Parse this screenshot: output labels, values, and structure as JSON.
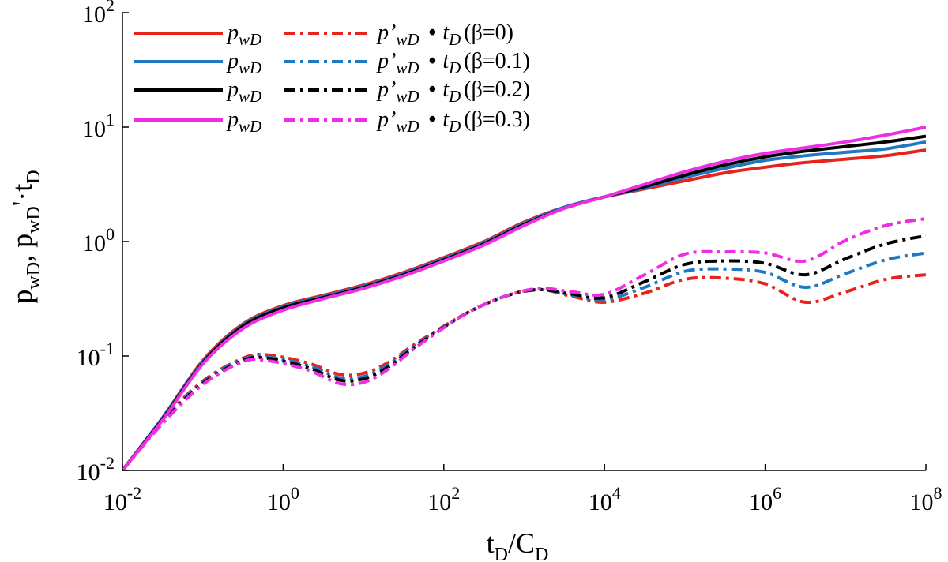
{
  "chart_data": {
    "type": "line",
    "xscale": "log",
    "yscale": "log",
    "xlim": [
      0.01,
      100000000
    ],
    "ylim": [
      0.01,
      100
    ],
    "xlabel": {
      "base": "t",
      "sub": "D",
      "slash": "/C",
      "sub2": "D"
    },
    "ylabel": {
      "p1": "p",
      "s1": "wD",
      "comma": ", p",
      "s2": "wD",
      "tail": "'·t",
      "s3": "D"
    },
    "x_ticks": [
      {
        "exp_value": -2,
        "base": "10",
        "exp": "-2"
      },
      {
        "exp_value": 0,
        "base": "10",
        "exp": "0"
      },
      {
        "exp_value": 2,
        "base": "10",
        "exp": "2"
      },
      {
        "exp_value": 4,
        "base": "10",
        "exp": "4"
      },
      {
        "exp_value": 6,
        "base": "10",
        "exp": "6"
      },
      {
        "exp_value": 8,
        "base": "10",
        "exp": "8"
      }
    ],
    "y_ticks": [
      {
        "exp_value": -2,
        "base": "10",
        "exp": "-2"
      },
      {
        "exp_value": -1,
        "base": "10",
        "exp": "-1"
      },
      {
        "exp_value": 0,
        "base": "10",
        "exp": "0"
      },
      {
        "exp_value": 1,
        "base": "10",
        "exp": "1"
      },
      {
        "exp_value": 2,
        "base": "10",
        "exp": "2"
      }
    ],
    "legend_position": "top-left",
    "legend": [
      {
        "solid": "p",
        "solid_sub": "wD",
        "dash": "p’",
        "dash_sub": "wD",
        "bullet": "•",
        "t": "t",
        "t_sub": "D",
        "beta": "(β=0)",
        "color": "#e8231b"
      },
      {
        "solid": "p",
        "solid_sub": "wD",
        "dash": "p’",
        "dash_sub": "wD",
        "bullet": "•",
        "t": "t",
        "t_sub": "D",
        "beta": "(β=0.1)",
        "color": "#1f78c1"
      },
      {
        "solid": "p",
        "solid_sub": "wD",
        "dash": "p’",
        "dash_sub": "wD",
        "bullet": "•",
        "t": "t",
        "t_sub": "D",
        "beta": "(β=0.2)",
        "color": "#000000"
      },
      {
        "solid": "p",
        "solid_sub": "wD",
        "dash": "p’",
        "dash_sub": "wD",
        "bullet": "•",
        "t": "t",
        "t_sub": "D",
        "beta": "(β=0.3)",
        "color": "#ee2ee5"
      }
    ],
    "series": [
      {
        "name": "pwD (β=0)",
        "color": "#e8231b",
        "style": "solid",
        "points": [
          [
            -2,
            -2
          ],
          [
            -1.5,
            -1.54
          ],
          [
            -1,
            -1.04
          ],
          [
            -0.5,
            -0.72
          ],
          [
            0,
            -0.56
          ],
          [
            0.5,
            -0.47
          ],
          [
            1,
            -0.38
          ],
          [
            1.5,
            -0.27
          ],
          [
            2,
            -0.14
          ],
          [
            2.5,
            0
          ],
          [
            3,
            0.17
          ],
          [
            3.5,
            0.3
          ],
          [
            4,
            0.39
          ],
          [
            4.5,
            0.46
          ],
          [
            5,
            0.53
          ],
          [
            5.5,
            0.6
          ],
          [
            6,
            0.65
          ],
          [
            6.5,
            0.69
          ],
          [
            7,
            0.72
          ],
          [
            7.5,
            0.75
          ],
          [
            8,
            0.8
          ]
        ]
      },
      {
        "name": "p’wD·tD (β=0)",
        "color": "#e8231b",
        "style": "dashdot",
        "points": [
          [
            -2,
            -2
          ],
          [
            -1.5,
            -1.56
          ],
          [
            -1,
            -1.22
          ],
          [
            -0.5,
            -1.02
          ],
          [
            -0.2,
            -0.99
          ],
          [
            0.3,
            -1.06
          ],
          [
            0.7,
            -1.16
          ],
          [
            1,
            -1.15
          ],
          [
            1.3,
            -1.06
          ],
          [
            1.7,
            -0.87
          ],
          [
            2.3,
            -0.62
          ],
          [
            2.8,
            -0.47
          ],
          [
            3.2,
            -0.42
          ],
          [
            3.6,
            -0.48
          ],
          [
            4,
            -0.53
          ],
          [
            4.5,
            -0.45
          ],
          [
            5,
            -0.33
          ],
          [
            5.5,
            -0.32
          ],
          [
            6,
            -0.37
          ],
          [
            6.5,
            -0.53
          ],
          [
            7,
            -0.44
          ],
          [
            7.5,
            -0.33
          ],
          [
            8,
            -0.29
          ]
        ]
      },
      {
        "name": "pwD (β=0.1)",
        "color": "#1f78c1",
        "style": "solid",
        "points": [
          [
            -2,
            -2
          ],
          [
            -1.5,
            -1.54
          ],
          [
            -1,
            -1.05
          ],
          [
            -0.5,
            -0.73
          ],
          [
            0,
            -0.57
          ],
          [
            0.5,
            -0.48
          ],
          [
            1,
            -0.39
          ],
          [
            1.5,
            -0.28
          ],
          [
            2,
            -0.15
          ],
          [
            2.5,
            -0.01
          ],
          [
            3,
            0.16
          ],
          [
            3.5,
            0.3
          ],
          [
            4,
            0.39
          ],
          [
            4.5,
            0.47
          ],
          [
            5,
            0.56
          ],
          [
            5.5,
            0.64
          ],
          [
            6,
            0.71
          ],
          [
            6.5,
            0.75
          ],
          [
            7,
            0.78
          ],
          [
            7.5,
            0.81
          ],
          [
            8,
            0.87
          ]
        ]
      },
      {
        "name": "p’wD·tD (β=0.1)",
        "color": "#1f78c1",
        "style": "dashdot",
        "points": [
          [
            -2,
            -2
          ],
          [
            -1.5,
            -1.57
          ],
          [
            -1,
            -1.23
          ],
          [
            -0.5,
            -1.03
          ],
          [
            -0.2,
            -1.01
          ],
          [
            0.3,
            -1.08
          ],
          [
            0.7,
            -1.19
          ],
          [
            1,
            -1.18
          ],
          [
            1.3,
            -1.08
          ],
          [
            1.7,
            -0.88
          ],
          [
            2.3,
            -0.62
          ],
          [
            2.8,
            -0.47
          ],
          [
            3.2,
            -0.42
          ],
          [
            3.6,
            -0.47
          ],
          [
            4,
            -0.51
          ],
          [
            4.5,
            -0.4
          ],
          [
            5,
            -0.26
          ],
          [
            5.5,
            -0.24
          ],
          [
            6,
            -0.27
          ],
          [
            6.5,
            -0.4
          ],
          [
            7,
            -0.28
          ],
          [
            7.5,
            -0.16
          ],
          [
            8,
            -0.1
          ]
        ]
      },
      {
        "name": "pwD (β=0.2)",
        "color": "#000000",
        "style": "solid",
        "points": [
          [
            -2,
            -2
          ],
          [
            -1.5,
            -1.55
          ],
          [
            -1,
            -1.06
          ],
          [
            -0.5,
            -0.74
          ],
          [
            0,
            -0.58
          ],
          [
            0.5,
            -0.49
          ],
          [
            1,
            -0.4
          ],
          [
            1.5,
            -0.29
          ],
          [
            2,
            -0.16
          ],
          [
            2.5,
            -0.02
          ],
          [
            3,
            0.15
          ],
          [
            3.5,
            0.29
          ],
          [
            4,
            0.39
          ],
          [
            4.5,
            0.48
          ],
          [
            5,
            0.58
          ],
          [
            5.5,
            0.67
          ],
          [
            6,
            0.74
          ],
          [
            6.5,
            0.79
          ],
          [
            7,
            0.83
          ],
          [
            7.5,
            0.87
          ],
          [
            8,
            0.92
          ]
        ]
      },
      {
        "name": "p’wD·tD (β=0.2)",
        "color": "#000000",
        "style": "dashdot",
        "points": [
          [
            -2,
            -2
          ],
          [
            -1.5,
            -1.58
          ],
          [
            -1,
            -1.24
          ],
          [
            -0.5,
            -1.04
          ],
          [
            -0.2,
            -1.02
          ],
          [
            0.3,
            -1.1
          ],
          [
            0.7,
            -1.21
          ],
          [
            1,
            -1.2
          ],
          [
            1.3,
            -1.1
          ],
          [
            1.7,
            -0.89
          ],
          [
            2.3,
            -0.62
          ],
          [
            2.8,
            -0.47
          ],
          [
            3.2,
            -0.42
          ],
          [
            3.6,
            -0.46
          ],
          [
            4,
            -0.49
          ],
          [
            4.5,
            -0.35
          ],
          [
            5,
            -0.2
          ],
          [
            5.5,
            -0.17
          ],
          [
            6,
            -0.19
          ],
          [
            6.5,
            -0.29
          ],
          [
            7,
            -0.15
          ],
          [
            7.5,
            -0.02
          ],
          [
            8,
            0.05
          ]
        ]
      },
      {
        "name": "pwD (β=0.3)",
        "color": "#ee2ee5",
        "style": "solid",
        "points": [
          [
            -2,
            -2
          ],
          [
            -1.5,
            -1.56
          ],
          [
            -1,
            -1.07
          ],
          [
            -0.5,
            -0.76
          ],
          [
            0,
            -0.6
          ],
          [
            0.5,
            -0.5
          ],
          [
            1,
            -0.41
          ],
          [
            1.5,
            -0.3
          ],
          [
            2,
            -0.17
          ],
          [
            2.5,
            -0.03
          ],
          [
            3,
            0.14
          ],
          [
            3.5,
            0.29
          ],
          [
            4,
            0.39
          ],
          [
            4.5,
            0.5
          ],
          [
            5,
            0.61
          ],
          [
            5.5,
            0.7
          ],
          [
            6,
            0.77
          ],
          [
            6.5,
            0.82
          ],
          [
            7,
            0.87
          ],
          [
            7.5,
            0.93
          ],
          [
            8,
            1.0
          ]
        ]
      },
      {
        "name": "p’wD·tD (β=0.3)",
        "color": "#ee2ee5",
        "style": "dashdot",
        "points": [
          [
            -2,
            -2
          ],
          [
            -1.5,
            -1.59
          ],
          [
            -1,
            -1.25
          ],
          [
            -0.5,
            -1.05
          ],
          [
            -0.2,
            -1.04
          ],
          [
            0.3,
            -1.12
          ],
          [
            0.7,
            -1.24
          ],
          [
            1,
            -1.23
          ],
          [
            1.3,
            -1.12
          ],
          [
            1.7,
            -0.9
          ],
          [
            2.3,
            -0.62
          ],
          [
            2.8,
            -0.47
          ],
          [
            3.2,
            -0.41
          ],
          [
            3.6,
            -0.44
          ],
          [
            4,
            -0.46
          ],
          [
            4.5,
            -0.29
          ],
          [
            5,
            -0.11
          ],
          [
            5.5,
            -0.09
          ],
          [
            6,
            -0.1
          ],
          [
            6.5,
            -0.17
          ],
          [
            7,
            0.01
          ],
          [
            7.5,
            0.14
          ],
          [
            8,
            0.2
          ]
        ]
      }
    ]
  }
}
